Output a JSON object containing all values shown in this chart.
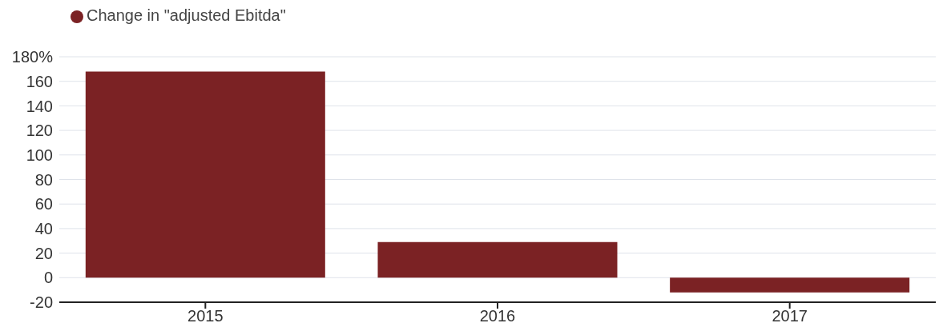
{
  "chart_data": {
    "type": "bar",
    "categories": [
      "2015",
      "2016",
      "2017"
    ],
    "series": [
      {
        "name": "Change in \"adjusted Ebitda\"",
        "color": "#7b2224",
        "values": [
          168,
          29,
          -12
        ]
      }
    ],
    "ylim": [
      -20,
      180
    ],
    "yticks": [
      -20,
      0,
      20,
      40,
      60,
      80,
      100,
      120,
      140,
      160,
      {
        "value": 180,
        "label": "180%"
      }
    ],
    "grid": "y",
    "legend": "top left"
  }
}
